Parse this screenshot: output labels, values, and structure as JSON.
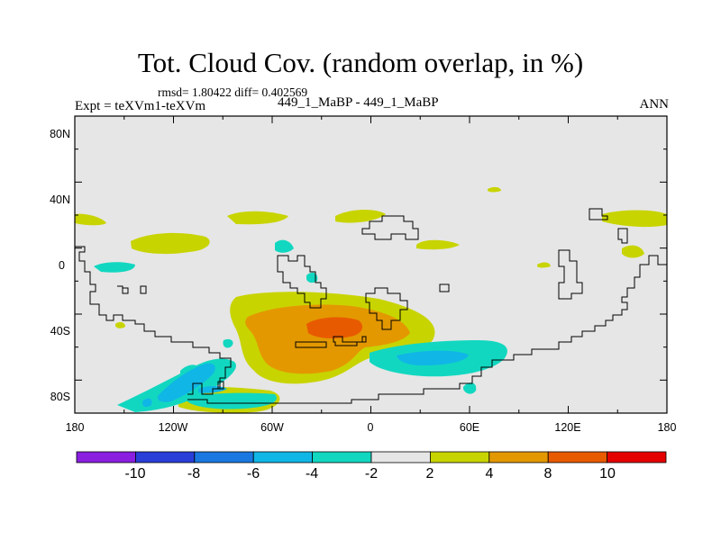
{
  "header": {
    "title": "Tot. Cloud Cov. (random overlap, in %)",
    "stats": "rmsd= 1.80422 diff= 0.402569",
    "experiment": "Expt = teXVm1-teXVm",
    "case": "449_1_MaBP - 449_1_MaBP",
    "season": "ANN"
  },
  "map": {
    "lat_ticks": [
      "80N",
      "40N",
      "0",
      "40S",
      "80S"
    ],
    "lon_ticks": [
      "180",
      "120W",
      "60W",
      "0",
      "60E",
      "120E",
      "180"
    ]
  },
  "colorbar": {
    "labels": [
      "-10",
      "-8",
      "-6",
      "-4",
      "-2",
      "2",
      "4",
      "8",
      "10"
    ],
    "colors": [
      "#8a1fe0",
      "#2a3ed8",
      "#1a78e0",
      "#10b6e6",
      "#12d7c0",
      "#e6e6e6",
      "#c8d400",
      "#e39800",
      "#e85a00",
      "#e40000"
    ]
  },
  "colors": {
    "land_bg": "#e6e6e6",
    "neg_2_4": "#12d7c0",
    "neg_4_6": "#10b6e6",
    "pos_2_4": "#c8d400",
    "pos_4_8": "#e39800",
    "pos_8_10": "#e85a00"
  }
}
